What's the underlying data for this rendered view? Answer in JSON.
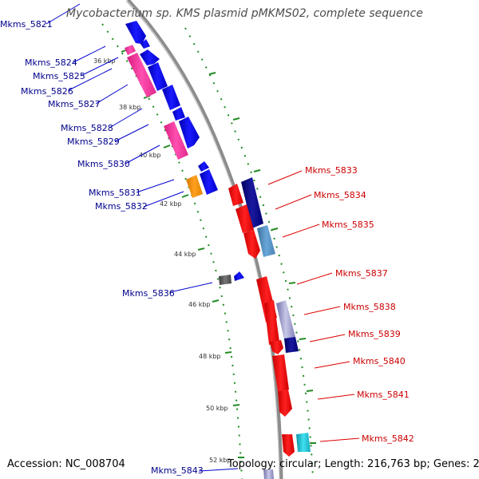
{
  "title": "Mycobacterium sp. KMS plasmid pMKMS02, complete sequence",
  "accession": "Accession: NC_008704",
  "topology": "Topology: circular; Length: 216,763 bp; Genes: 232",
  "ticks": [
    "36 kbp",
    "38 kbp",
    "40 kbp",
    "42 kbp",
    "44 kbp",
    "46 kbp",
    "48 kbp",
    "50 kbp",
    "52 kbp"
  ],
  "left_genes": [
    "Mkms_5821",
    "Mkms_5824",
    "Mkms_5825",
    "Mkms_5826",
    "Mkms_5827",
    "Mkms_5828",
    "Mkms_5829",
    "Mkms_5830",
    "Mkms_5831",
    "Mkms_5832",
    "Mkms_5836",
    "Mkms_5843"
  ],
  "right_genes": [
    "Mkms_5833",
    "Mkms_5834",
    "Mkms_5835",
    "Mkms_5837",
    "Mkms_5838",
    "Mkms_5839",
    "Mkms_5840",
    "Mkms_5841",
    "Mkms_5842"
  ],
  "colors": {
    "forward_strand": "#0000ee",
    "reverse_strand": "#ee0000",
    "magenta": "#ee2e96",
    "orange": "#f08c00",
    "navy": "#000080",
    "steel_blue": "#4682b4",
    "gray": "#555555",
    "cyan": "#1fb5c8",
    "backbone": "#8c8c8c",
    "dots": "#228b22"
  }
}
